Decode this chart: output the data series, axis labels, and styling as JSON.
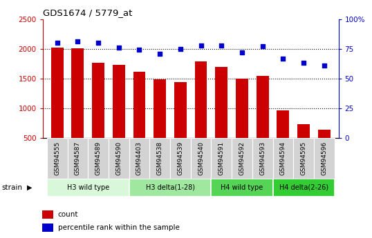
{
  "title": "GDS1674 / 5779_at",
  "samples": [
    "GSM94555",
    "GSM94587",
    "GSM94589",
    "GSM94590",
    "GSM94403",
    "GSM94538",
    "GSM94539",
    "GSM94540",
    "GSM94591",
    "GSM94592",
    "GSM94593",
    "GSM94594",
    "GSM94595",
    "GSM94596"
  ],
  "counts": [
    2020,
    2010,
    1770,
    1730,
    1610,
    1490,
    1440,
    1790,
    1700,
    1500,
    1550,
    960,
    730,
    640
  ],
  "percentiles": [
    80,
    81,
    80,
    76,
    74,
    71,
    75,
    78,
    78,
    72,
    77,
    67,
    63,
    61
  ],
  "bar_color": "#cc0000",
  "dot_color": "#0000cc",
  "ylim_left": [
    500,
    2500
  ],
  "ylim_right": [
    0,
    100
  ],
  "yticks_left": [
    500,
    1000,
    1500,
    2000,
    2500
  ],
  "yticks_right": [
    0,
    25,
    50,
    75,
    100
  ],
  "yticklabels_right": [
    "0",
    "25",
    "50",
    "75",
    "100%"
  ],
  "grid_dotted_values": [
    1000,
    1500,
    2000
  ],
  "groups": [
    {
      "label": "H3 wild type",
      "start": 0,
      "end": 3,
      "color": "#d9f7d9"
    },
    {
      "label": "H3 delta(1-28)",
      "start": 4,
      "end": 7,
      "color": "#a0e8a0"
    },
    {
      "label": "H4 wild type",
      "start": 8,
      "end": 10,
      "color": "#55d455"
    },
    {
      "label": "H4 delta(2-26)",
      "start": 11,
      "end": 13,
      "color": "#33cc33"
    }
  ],
  "tick_bg_color": "#d3d3d3",
  "strain_label": "strain",
  "legend_count_label": "count",
  "legend_percentile_label": "percentile rank within the sample"
}
